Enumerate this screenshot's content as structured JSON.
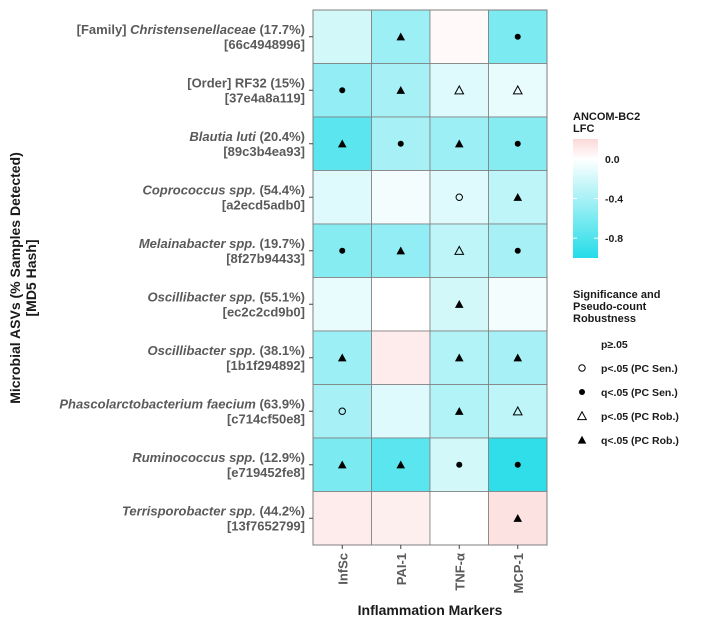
{
  "chart_data": {
    "type": "heatmap",
    "xlabel": "Inflammation Markers",
    "ylabel_line1": "Microbial ASVs (% Samples Detected)",
    "ylabel_line2": "[MD5 Hash]",
    "columns": [
      "InfSc",
      "PAI-1",
      "TNF-α",
      "MCP-1"
    ],
    "rows": [
      {
        "prefix": "[Family] ",
        "name": "Christensenellaceae",
        "italic": true,
        "pct": " (17.7%)",
        "hash": "[66c4948996]"
      },
      {
        "prefix": "[Order] RF32",
        "name": "",
        "italic": false,
        "pct": " (15%)",
        "hash": "[37e4a8a119]"
      },
      {
        "prefix": "",
        "name": "Blautia luti",
        "italic": true,
        "pct": " (20.4%)",
        "hash": "[89c3b4ea93]"
      },
      {
        "prefix": "",
        "name": "Coprococcus spp.",
        "italic": true,
        "pct": " (54.4%)",
        "hash": "[a2ecd5adb0]"
      },
      {
        "prefix": "",
        "name": "Melainabacter spp.",
        "italic": true,
        "pct": " (19.7%)",
        "hash": "[8f27b94433]"
      },
      {
        "prefix": "",
        "name": "Oscillibacter spp.",
        "italic": true,
        "pct": " (55.1%)",
        "hash": "[ec2c2cd9b0]"
      },
      {
        "prefix": "",
        "name": "Oscillibacter spp.",
        "italic": true,
        "pct": " (38.1%)",
        "hash": "[1b1f294892]"
      },
      {
        "prefix": "",
        "name": "Phascolarctobacterium faecium",
        "italic": true,
        "pct": " (63.9%)",
        "hash": "[c714cf50e8]"
      },
      {
        "prefix": "",
        "name": "Ruminococcus spp.",
        "italic": true,
        "pct": " (12.9%)",
        "hash": "[e719452fe8]"
      },
      {
        "prefix": "",
        "name": "Terrisporobacter spp.",
        "italic": true,
        "pct": " (44.2%)",
        "hash": "[13f7652799]"
      }
    ],
    "values": [
      [
        -0.2,
        -0.45,
        0.03,
        -0.6
      ],
      [
        -0.5,
        -0.4,
        -0.15,
        -0.1
      ],
      [
        -0.75,
        -0.4,
        -0.45,
        -0.55
      ],
      [
        -0.15,
        -0.05,
        -0.15,
        -0.3
      ],
      [
        -0.55,
        -0.5,
        -0.3,
        -0.4
      ],
      [
        -0.1,
        0.0,
        -0.2,
        -0.05
      ],
      [
        -0.45,
        0.1,
        -0.35,
        -0.4
      ],
      [
        -0.4,
        -0.15,
        -0.35,
        -0.3
      ],
      [
        -0.6,
        -0.75,
        -0.2,
        -0.95
      ],
      [
        0.1,
        0.08,
        0.0,
        0.15
      ]
    ],
    "markers": [
      [
        "none",
        "q_rob",
        "none",
        "q_sen"
      ],
      [
        "q_sen",
        "q_rob",
        "p_rob",
        "p_rob"
      ],
      [
        "q_rob",
        "q_sen",
        "q_rob",
        "q_sen"
      ],
      [
        "none",
        "none",
        "p_sen",
        "q_rob"
      ],
      [
        "q_sen",
        "q_rob",
        "p_rob",
        "q_sen"
      ],
      [
        "none",
        "none",
        "q_rob",
        "none"
      ],
      [
        "q_rob",
        "none",
        "q_rob",
        "q_rob"
      ],
      [
        "p_sen",
        "none",
        "q_rob",
        "p_rob"
      ],
      [
        "q_rob",
        "q_rob",
        "q_sen",
        "q_sen"
      ],
      [
        "none",
        "none",
        "none",
        "q_rob"
      ]
    ],
    "color_scale": {
      "title_line1": "ANCOM-BC2",
      "title_line2": "LFC",
      "min": -1.0,
      "max": 0.2,
      "ticks": [
        0.0,
        -0.4,
        -0.8
      ],
      "tick_labels": [
        "0.0",
        "-0.4",
        "-0.8"
      ],
      "low_color": "#24dce8",
      "mid_color": "#ffffff",
      "high_color": "#fcd8d8"
    },
    "significance_legend": {
      "title_lines": [
        "Significance and",
        "Pseudo-count",
        "Robustness"
      ],
      "items": [
        {
          "key": "none",
          "label": "p≥.05"
        },
        {
          "key": "p_sen",
          "label": "p<.05 (PC Sen.)"
        },
        {
          "key": "q_sen",
          "label": "q<.05 (PC Sen.)"
        },
        {
          "key": "p_rob",
          "label": "p<.05 (PC Rob.)"
        },
        {
          "key": "q_rob",
          "label": "q<.05 (PC Rob.)"
        }
      ]
    }
  }
}
